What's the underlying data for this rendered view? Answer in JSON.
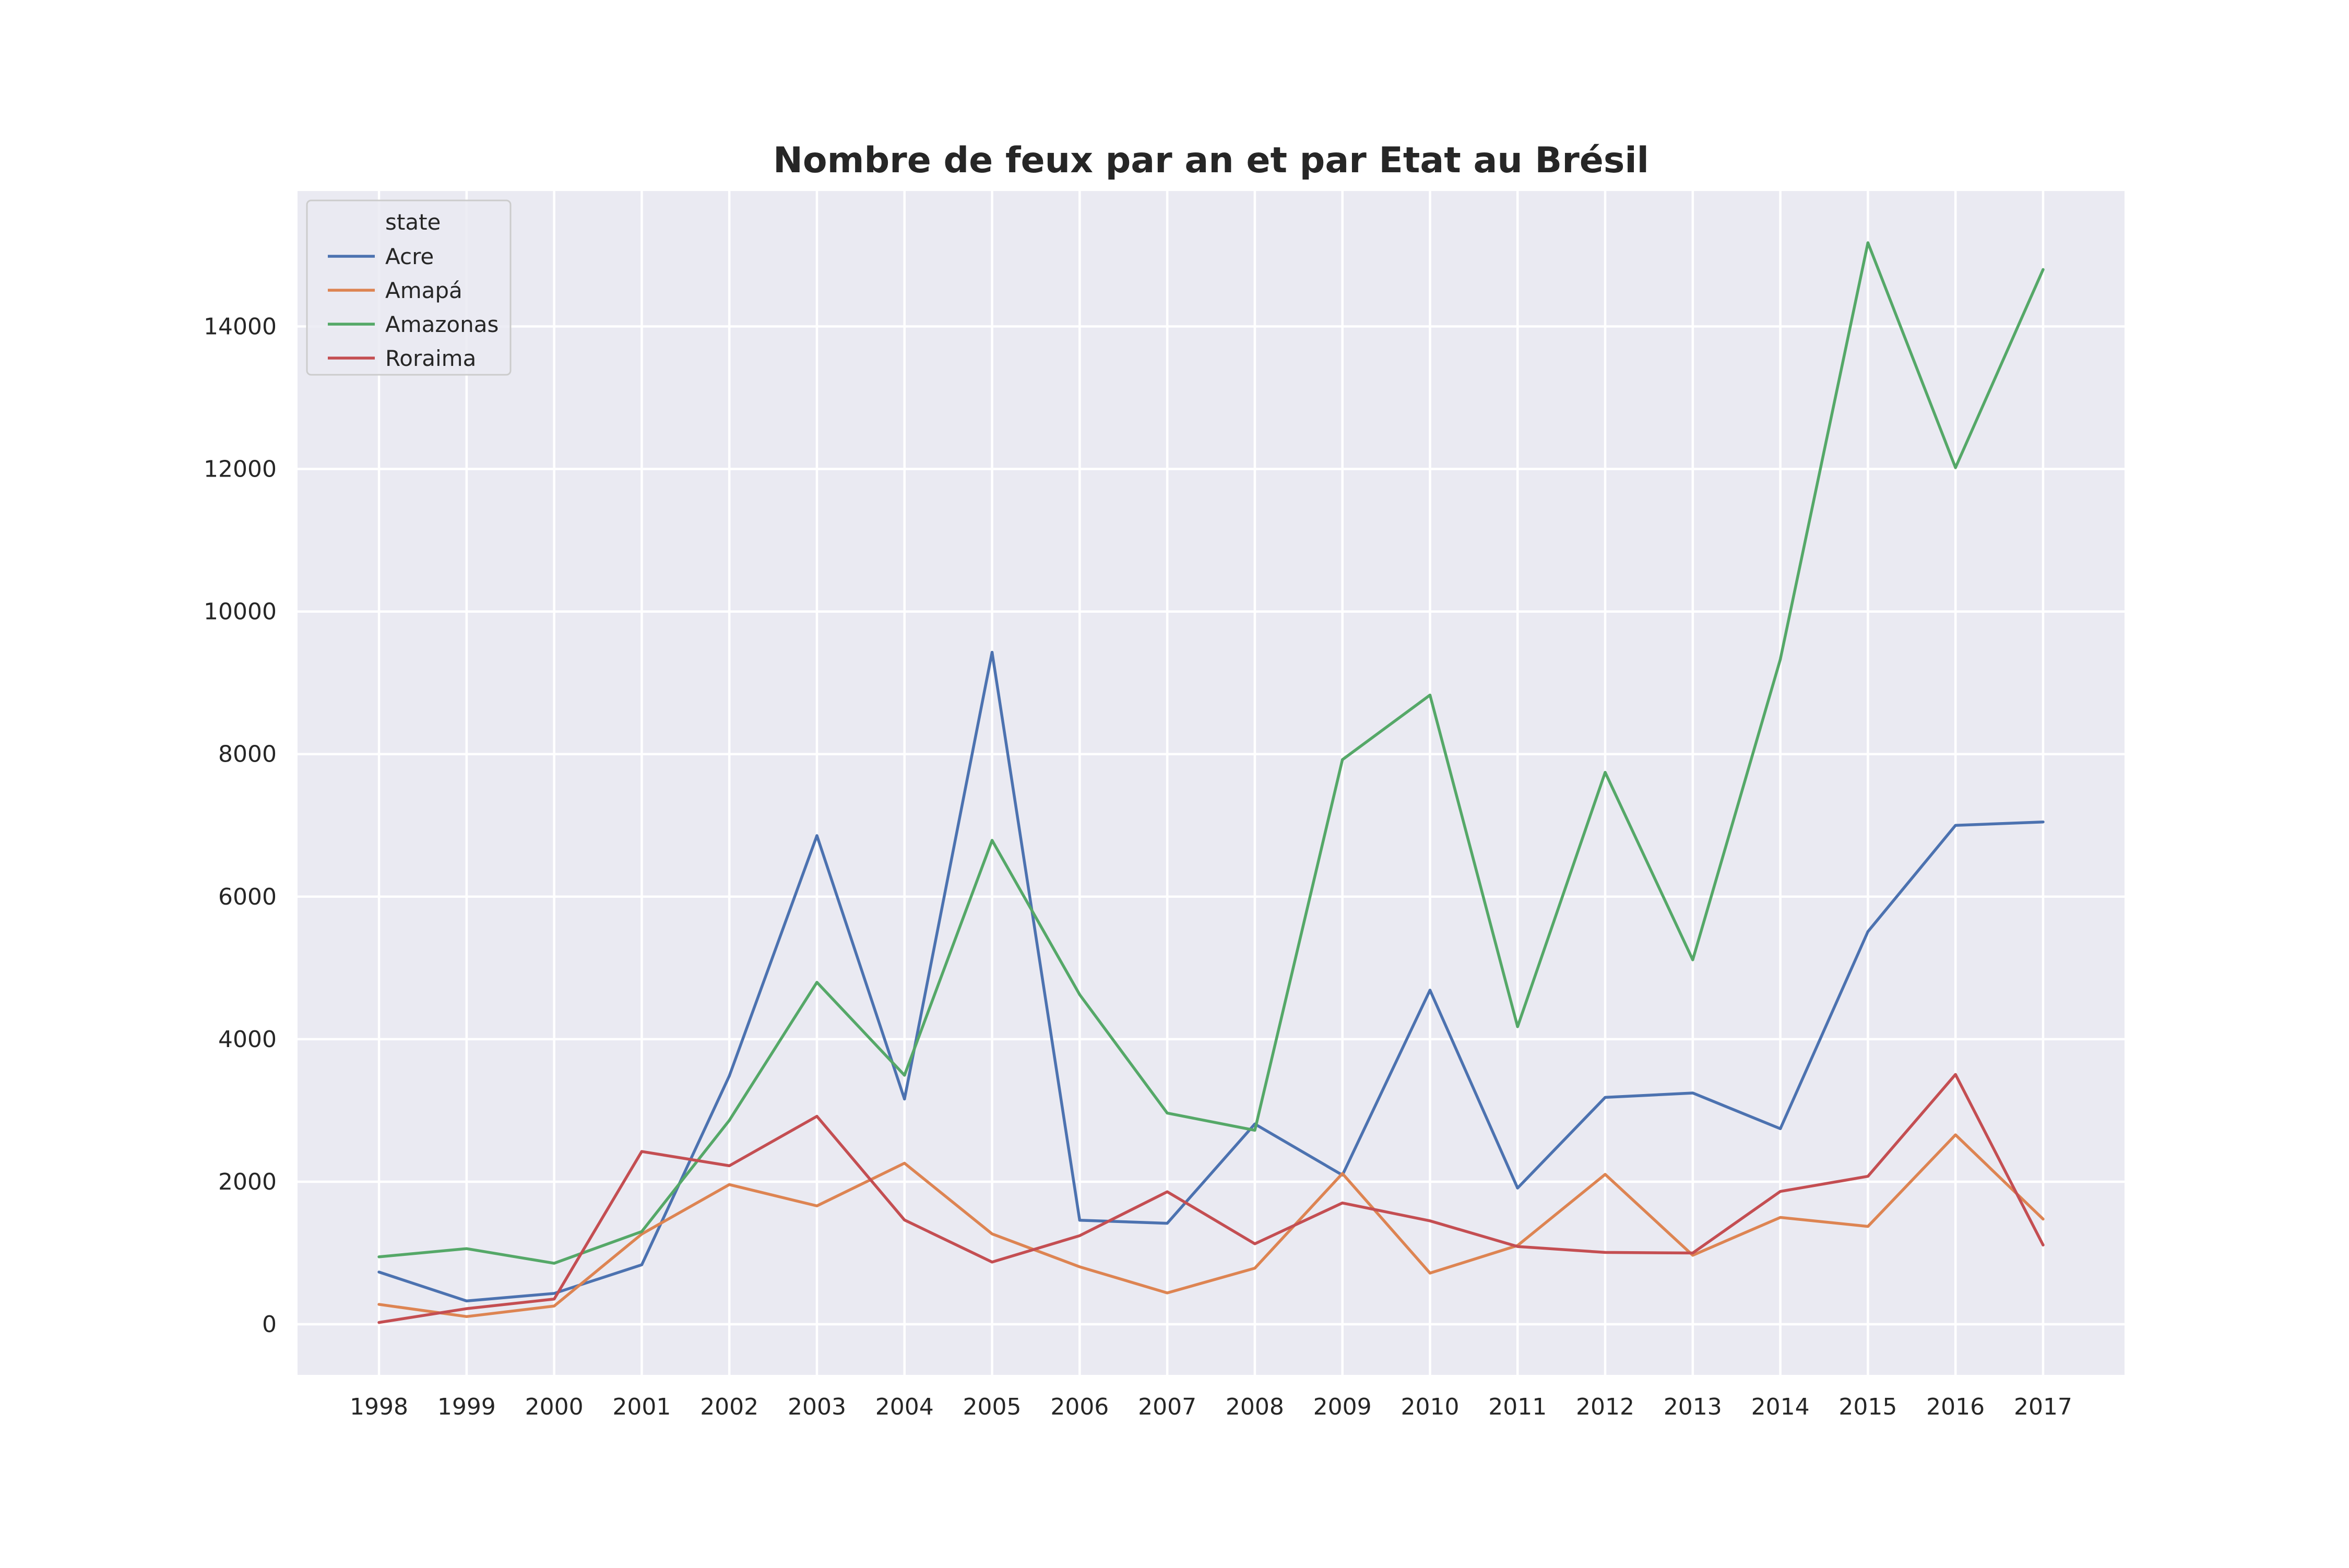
{
  "chart_data": {
    "type": "line",
    "title": "Nombre de feux par an et par Etat au Brésil",
    "xlabel": "",
    "ylabel": "",
    "x": [
      1998,
      1999,
      2000,
      2001,
      2002,
      2003,
      2004,
      2005,
      2006,
      2007,
      2008,
      2009,
      2010,
      2011,
      2012,
      2013,
      2014,
      2015,
      2016,
      2017
    ],
    "xlim": [
      1997.07,
      2017.93
    ],
    "ylim": [
      -710,
      15900
    ],
    "yticks": [
      0,
      2000,
      4000,
      6000,
      8000,
      10000,
      12000,
      14000
    ],
    "grid": true,
    "legend": {
      "title": "state",
      "placement": "top-left"
    },
    "series": [
      {
        "name": "Acre",
        "color": "#4c72b0",
        "values": [
          733,
          327,
          433,
          834,
          3485,
          6856,
          3160,
          9429,
          1460,
          1417,
          2810,
          2093,
          4688,
          1911,
          3183,
          3245,
          2744,
          5510,
          7000,
          7048
        ]
      },
      {
        "name": "Amapá",
        "color": "#dd8452",
        "values": [
          279,
          108,
          256,
          1266,
          1960,
          1661,
          2260,
          1268,
          806,
          440,
          787,
          2115,
          718,
          1105,
          2103,
          968,
          1499,
          1373,
          2658,
          1476
        ]
      },
      {
        "name": "Amazonas",
        "color": "#55a868",
        "values": [
          946,
          1061,
          856,
          1301,
          2861,
          4798,
          3494,
          6790,
          4625,
          2963,
          2722,
          7922,
          8828,
          4175,
          7744,
          5113,
          9330,
          15175,
          12019,
          14799
        ]
      },
      {
        "name": "Roraima",
        "color": "#c44e52",
        "values": [
          25,
          219,
          354,
          2424,
          2224,
          2918,
          1463,
          873,
          1243,
          1859,
          1129,
          1702,
          1451,
          1091,
          1008,
          1000,
          1864,
          2076,
          3505,
          1112
        ]
      }
    ]
  }
}
